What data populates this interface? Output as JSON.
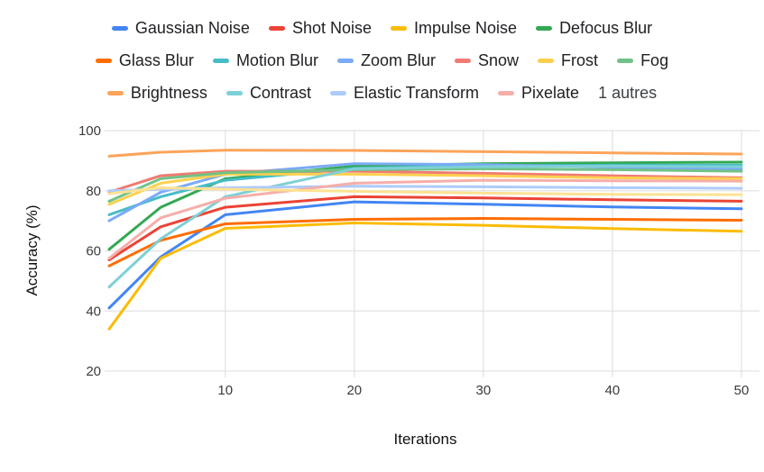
{
  "chart_data": {
    "type": "line",
    "title": "",
    "xlabel": "Iterations",
    "ylabel": "Accuracy (%)",
    "x": [
      1,
      5,
      10,
      20,
      30,
      40,
      50
    ],
    "xticks": [
      10,
      20,
      30,
      40,
      50
    ],
    "yticks": [
      20,
      40,
      60,
      80,
      100
    ],
    "xlim": [
      1,
      50
    ],
    "ylim": [
      20,
      100
    ],
    "grid": true,
    "grid_color": "#e3e3e3",
    "legend_position": "top",
    "legend_overflow_label": "1 autres",
    "legend_rows": [
      [
        0,
        1,
        2,
        3
      ],
      [
        4,
        5,
        6,
        7,
        8,
        9
      ],
      [
        10,
        11,
        12,
        13
      ]
    ],
    "series": [
      {
        "name": "Gaussian Noise",
        "color": "#4285F4",
        "in_legend": true,
        "values": [
          41,
          58,
          72,
          76.3,
          75.5,
          74.6,
          74
        ]
      },
      {
        "name": "Shot Noise",
        "color": "#EA4335",
        "in_legend": true,
        "values": [
          57,
          68,
          74.5,
          78,
          77.6,
          77,
          76.5
        ]
      },
      {
        "name": "Impulse Noise",
        "color": "#FBBC04",
        "in_legend": true,
        "values": [
          34,
          57.5,
          67.5,
          69.3,
          68.5,
          67.4,
          66.5
        ]
      },
      {
        "name": "Defocus Blur",
        "color": "#34A853",
        "in_legend": true,
        "values": [
          60.5,
          74.5,
          84,
          88.2,
          89,
          89.3,
          89.5
        ]
      },
      {
        "name": "Glass Blur",
        "color": "#FF6D01",
        "in_legend": true,
        "values": [
          55,
          63.5,
          69,
          70.5,
          70.8,
          70.5,
          70.2
        ]
      },
      {
        "name": "Motion Blur",
        "color": "#46BDC6",
        "in_legend": true,
        "values": [
          72,
          78,
          83.5,
          87.5,
          88.3,
          88.5,
          88.5
        ]
      },
      {
        "name": "Zoom Blur",
        "color": "#7BAAF7",
        "in_legend": true,
        "values": [
          70,
          79.5,
          85.5,
          89,
          88.7,
          87.8,
          87.2
        ]
      },
      {
        "name": "Snow",
        "color": "#F07B72",
        "in_legend": true,
        "values": [
          79.5,
          85,
          86.5,
          86.5,
          85.8,
          85,
          84.3
        ]
      },
      {
        "name": "Frost",
        "color": "#FCD04F",
        "in_legend": true,
        "values": [
          75.5,
          82.5,
          85.5,
          85.5,
          85,
          84.3,
          84
        ]
      },
      {
        "name": "Fog",
        "color": "#71C287",
        "in_legend": true,
        "values": [
          76.5,
          84,
          86,
          87,
          87.3,
          87,
          86.5
        ]
      },
      {
        "name": "Brightness",
        "color": "#FCA45A",
        "in_legend": true,
        "values": [
          91.5,
          92.8,
          93.5,
          93.4,
          93,
          92.6,
          92.2
        ]
      },
      {
        "name": "Contrast",
        "color": "#7ED0D6",
        "in_legend": true,
        "values": [
          48,
          64,
          78,
          87.3,
          88,
          88.2,
          88
        ]
      },
      {
        "name": "Elastic Transform",
        "color": "#AECBFA",
        "in_legend": true,
        "values": [
          80,
          80.5,
          81,
          81.5,
          81.3,
          81,
          80.8
        ]
      },
      {
        "name": "Pixelate",
        "color": "#F6AEA9",
        "in_legend": true,
        "values": [
          57.5,
          71,
          77.5,
          82.5,
          83.5,
          83.3,
          83.2
        ]
      },
      {
        "name": "1 autres",
        "color": "#FDE293",
        "in_legend": false,
        "values": [
          79,
          81,
          80.5,
          79.8,
          79.2,
          78.8,
          78.7
        ]
      }
    ]
  }
}
